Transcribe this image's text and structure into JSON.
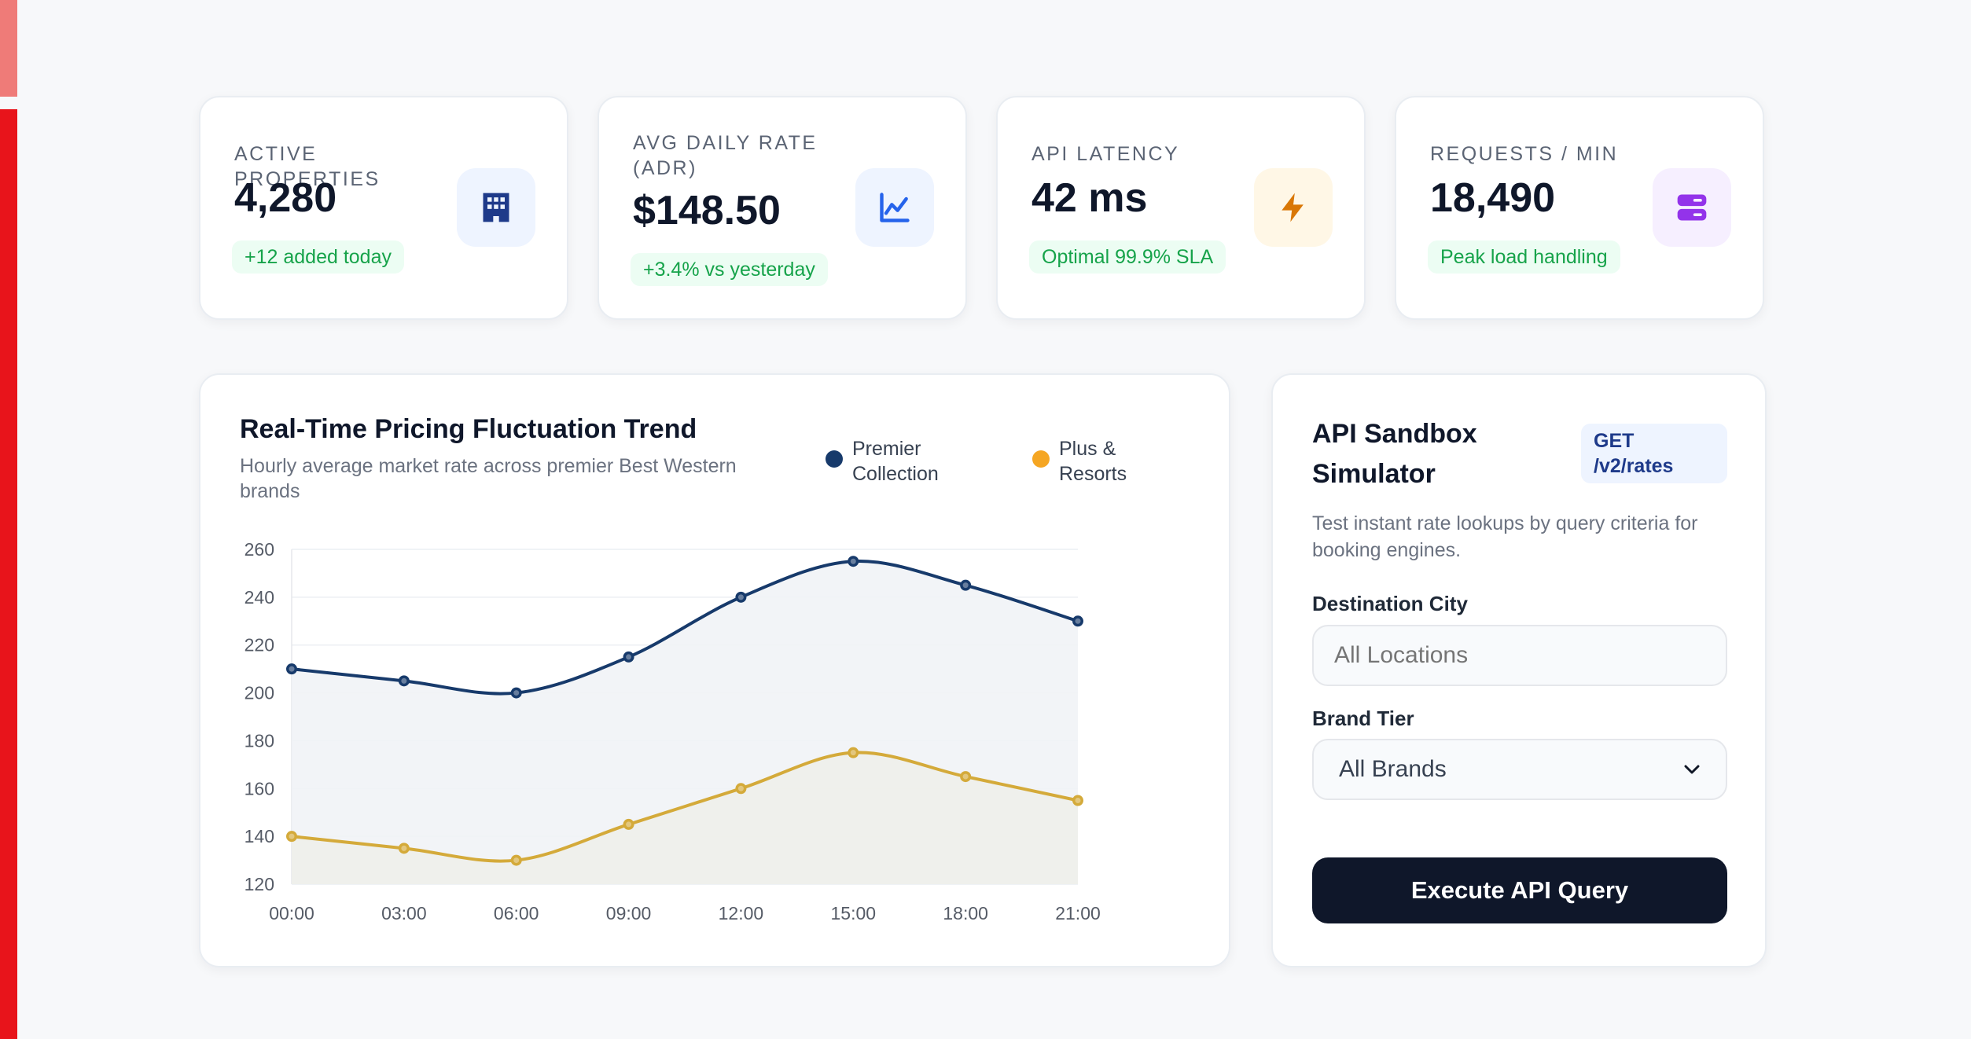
{
  "stats": [
    {
      "label": "ACTIVE PROPERTIES",
      "value": "4,280",
      "pill": "+12 added today",
      "icon": "building-icon",
      "icon_bg": "#eef4ff",
      "icon_color": "#1e3a8a"
    },
    {
      "label": "AVG DAILY RATE (ADR)",
      "value": "$148.50",
      "pill": "+3.4% vs yesterday",
      "icon": "trend-chart-icon",
      "icon_bg": "#eef4ff",
      "icon_color": "#2563eb"
    },
    {
      "label": "API LATENCY",
      "value": "42 ms",
      "pill": "Optimal 99.9% SLA",
      "icon": "lightning-icon",
      "icon_bg": "#fff7e6",
      "icon_color": "#d97706"
    },
    {
      "label": "REQUESTS / MIN",
      "value": "18,490",
      "pill": "Peak load handling",
      "icon": "server-icon",
      "icon_bg": "#f6efff",
      "icon_color": "#9333ea"
    }
  ],
  "chart": {
    "title": "Real-Time Pricing Fluctuation Trend",
    "subtitle": "Hourly average market rate across premier Best Western brands",
    "legend": [
      {
        "name": "Premier Collection",
        "line1": "Premier",
        "line2": "Collection",
        "color": "#173a6b"
      },
      {
        "name": "Plus & Resorts",
        "line1": "Plus &",
        "line2": "Resorts",
        "color": "#f5a623"
      }
    ]
  },
  "chart_data": {
    "type": "line",
    "title": "Real-Time Pricing Fluctuation Trend",
    "subtitle": "Hourly average market rate across premier Best Western brands",
    "x": [
      "00:00",
      "03:00",
      "06:00",
      "09:00",
      "12:00",
      "15:00",
      "18:00",
      "21:00"
    ],
    "series": [
      {
        "name": "Premier Collection",
        "color": "#173a6b",
        "fill": "#f1f3f6",
        "values": [
          210,
          205,
          200,
          215,
          240,
          255,
          245,
          230
        ]
      },
      {
        "name": "Plus & Resorts",
        "color": "#d4aa3a",
        "fill": "#eef0ea",
        "values": [
          140,
          135,
          130,
          145,
          160,
          175,
          165,
          155
        ]
      }
    ],
    "ylim": [
      120,
      260
    ],
    "yticks": [
      120,
      140,
      160,
      180,
      200,
      220,
      240,
      260
    ],
    "grid": true,
    "legend_position": "top-right"
  },
  "sandbox": {
    "title": "API Sandbox Simulator",
    "badge": "GET /v2/rates",
    "description": "Test instant rate lookups by query criteria for booking engines.",
    "destination_label": "Destination City",
    "destination_placeholder": "All Locations",
    "brand_label": "Brand Tier",
    "brand_selected": "All Brands",
    "button_label": "Execute API Query"
  }
}
